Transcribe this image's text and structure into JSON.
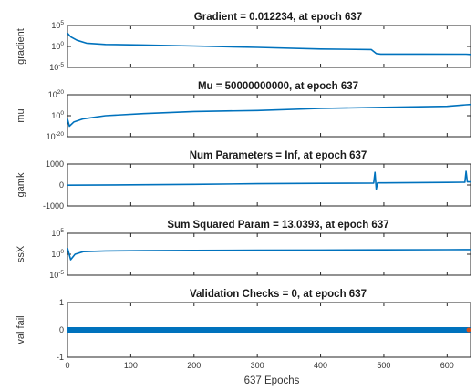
{
  "figure_xlabel": "637 Epochs",
  "colors": {
    "series": "#0072BD",
    "marker": "#D95319",
    "axis": "#262626"
  },
  "chart_data": [
    {
      "type": "line",
      "title": "Gradient = 0.012234, at epoch 637",
      "ylabel": "gradient",
      "yscale": "log",
      "ylim": [
        1e-05,
        100000.0
      ],
      "yticks": [
        {
          "value": 100000.0,
          "label": "10^5"
        },
        {
          "value": 1.0,
          "label": "10^0"
        },
        {
          "value": 1e-05,
          "label": "10^-5"
        }
      ],
      "xlim": [
        0,
        637
      ],
      "x": [
        0,
        5,
        15,
        30,
        60,
        120,
        200,
        300,
        400,
        480,
        488,
        495,
        560,
        630,
        637
      ],
      "y": [
        1500,
        200,
        30,
        6,
        3,
        2.2,
        1.3,
        0.6,
        0.25,
        0.18,
        0.02,
        0.015,
        0.015,
        0.014,
        0.012234
      ]
    },
    {
      "type": "line",
      "title": "Mu = 50000000000, at epoch 637",
      "ylabel": "mu",
      "yscale": "log",
      "ylim": [
        1e-20,
        1e+20
      ],
      "yticks": [
        {
          "value": 1e+20,
          "label": "10^20"
        },
        {
          "value": 1.0,
          "label": "10^0"
        },
        {
          "value": 1e-20,
          "label": "10^-20"
        }
      ],
      "xlim": [
        0,
        637
      ],
      "x": [
        0,
        3,
        10,
        25,
        60,
        120,
        200,
        300,
        400,
        500,
        600,
        630,
        637
      ],
      "y": [
        0.001,
        1e-10,
        1e-06,
        0.001,
        1.0,
        100.0,
        10000.0,
        100000.0,
        10000000.0,
        100000000.0,
        1000000000.0,
        30000000000.0,
        50000000000.0
      ]
    },
    {
      "type": "line",
      "title": "Num Parameters = Inf, at epoch 637",
      "ylabel": "gamk",
      "yscale": "linear",
      "ylim": [
        -1000,
        1000
      ],
      "yticks": [
        {
          "value": 1000,
          "label": "1000"
        },
        {
          "value": 0,
          "label": "0"
        },
        {
          "value": -1000,
          "label": "-1000"
        }
      ],
      "xlim": [
        0,
        637
      ],
      "x": [
        0,
        100,
        200,
        300,
        400,
        484,
        486,
        488,
        490,
        500,
        600,
        628,
        630,
        632,
        637
      ],
      "y": [
        -10,
        10,
        30,
        60,
        80,
        90,
        600,
        -200,
        100,
        100,
        120,
        130,
        650,
        150,
        150
      ]
    },
    {
      "type": "line",
      "title": "Sum Squared Param = 13.0393, at epoch 637",
      "ylabel": "ssX",
      "yscale": "log",
      "ylim": [
        1e-05,
        100000.0
      ],
      "yticks": [
        {
          "value": 100000.0,
          "label": "10^5"
        },
        {
          "value": 1.0,
          "label": "10^0"
        },
        {
          "value": 1e-05,
          "label": "10^-5"
        }
      ],
      "xlim": [
        0,
        637
      ],
      "x": [
        0,
        5,
        12,
        25,
        60,
        120,
        200,
        300,
        400,
        500,
        600,
        637
      ],
      "y": [
        30,
        0.05,
        1,
        4,
        6,
        7,
        8,
        9,
        10,
        11,
        12.5,
        13.0393
      ]
    },
    {
      "type": "line",
      "title": "Validation Checks = 0, at epoch 637",
      "ylabel": "val fail",
      "yscale": "linear",
      "ylim": [
        -1,
        1
      ],
      "yticks": [
        {
          "value": 1,
          "label": "1"
        },
        {
          "value": 0,
          "label": "0"
        },
        {
          "value": -1,
          "label": "-1"
        }
      ],
      "xlim": [
        0,
        637
      ],
      "xticks": [
        0,
        100,
        200,
        300,
        400,
        500,
        600
      ],
      "x": [
        0,
        637
      ],
      "y": [
        0,
        0
      ],
      "marker_last": true
    }
  ]
}
